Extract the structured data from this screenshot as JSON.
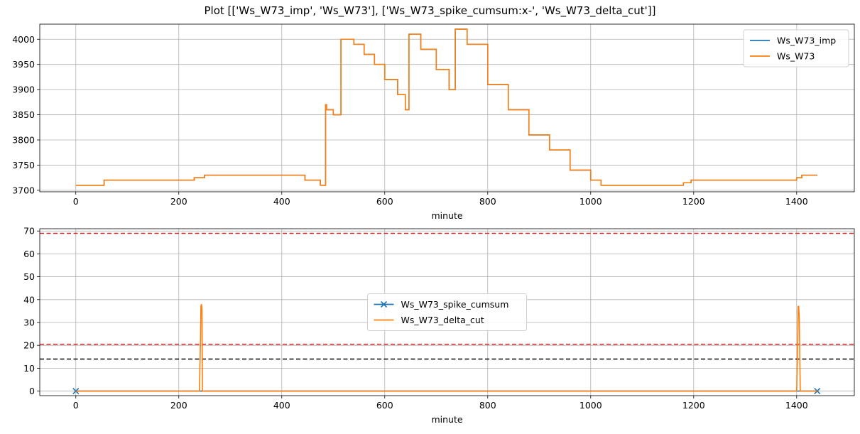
{
  "figure": {
    "suptitle": "Plot [['Ws_W73_imp', 'Ws_W73'], ['Ws_W73_spike_cumsum:x-', 'Ws_W73_delta_cut']]"
  },
  "chart_data": [
    {
      "type": "line",
      "xlabel": "minute",
      "ylabel": "",
      "xlim": [
        -70,
        1512
      ],
      "ylim": [
        3697,
        4030
      ],
      "xticks": [
        0,
        200,
        400,
        600,
        800,
        1000,
        1200,
        1400
      ],
      "yticks": [
        3700,
        3750,
        3800,
        3850,
        3900,
        3950,
        4000
      ],
      "grid": true,
      "legend": "top-right",
      "series": [
        {
          "name": "Ws_W73_imp",
          "color": "#1f77b4",
          "marker": "",
          "step": true,
          "x": [
            0,
            55,
            230,
            250,
            445,
            475,
            485,
            487,
            500,
            515,
            540,
            560,
            580,
            600,
            625,
            640,
            647,
            670,
            700,
            725,
            737,
            760,
            800,
            840,
            880,
            920,
            960,
            1000,
            1020,
            1180,
            1195,
            1400,
            1410,
            1440
          ],
          "values": [
            3710,
            3720,
            3725,
            3730,
            3720,
            3710,
            3870,
            3860,
            3850,
            4000,
            3990,
            3970,
            3950,
            3920,
            3890,
            3860,
            4010,
            3980,
            3940,
            3900,
            4020,
            3990,
            3910,
            3860,
            3810,
            3780,
            3740,
            3720,
            3710,
            3715,
            3720,
            3725,
            3730,
            3730
          ]
        },
        {
          "name": "Ws_W73",
          "color": "#ff7f0e",
          "marker": "",
          "step": true,
          "x": [
            0,
            55,
            230,
            250,
            445,
            475,
            485,
            487,
            500,
            515,
            540,
            560,
            580,
            600,
            625,
            640,
            647,
            670,
            700,
            725,
            737,
            760,
            800,
            840,
            880,
            920,
            960,
            1000,
            1020,
            1180,
            1195,
            1400,
            1410,
            1440
          ],
          "values": [
            3710,
            3720,
            3725,
            3730,
            3720,
            3710,
            3870,
            3860,
            3850,
            4000,
            3990,
            3970,
            3950,
            3920,
            3890,
            3860,
            4010,
            3980,
            3940,
            3900,
            4020,
            3990,
            3910,
            3860,
            3810,
            3780,
            3740,
            3720,
            3710,
            3715,
            3720,
            3725,
            3730,
            3730
          ]
        }
      ]
    },
    {
      "type": "line",
      "xlabel": "minute",
      "ylabel": "",
      "xlim": [
        -70,
        1512
      ],
      "ylim": [
        -2,
        71
      ],
      "xticks": [
        0,
        200,
        400,
        600,
        800,
        1000,
        1200,
        1400
      ],
      "yticks": [
        0,
        10,
        20,
        30,
        40,
        50,
        60,
        70
      ],
      "grid": true,
      "legend": "center",
      "hlines": [
        {
          "y": 69,
          "color": "#d62728",
          "style": "dashed"
        },
        {
          "y": 20.5,
          "color": "#d62728",
          "style": "dashed"
        },
        {
          "y": 14,
          "color": "#000000",
          "style": "dashed"
        }
      ],
      "series": [
        {
          "name": "Ws_W73_spike_cumsum",
          "color": "#1f77b4",
          "marker": "x",
          "step": false,
          "x": [
            0,
            1440
          ],
          "values": [
            0,
            0
          ]
        },
        {
          "name": "Ws_W73_delta_cut",
          "color": "#ff7f0e",
          "marker": "",
          "step": false,
          "x": [
            0,
            240,
            242,
            243,
            244,
            245,
            246,
            1400,
            1402,
            1403,
            1404,
            1405,
            1407,
            1440
          ],
          "values": [
            0,
            0,
            20,
            37,
            38,
            36,
            0,
            0,
            20,
            37,
            37,
            33,
            0,
            0
          ]
        }
      ]
    }
  ]
}
